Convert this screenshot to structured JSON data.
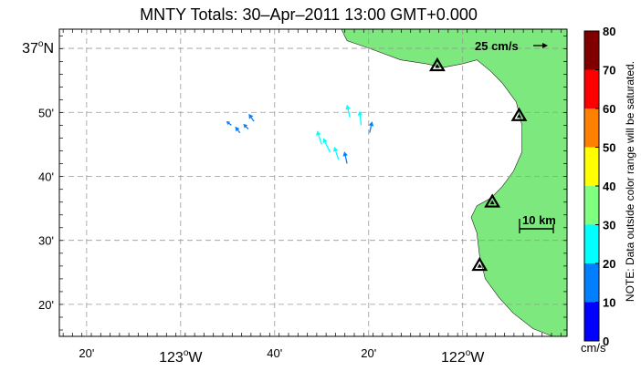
{
  "title": "MNTY Totals: 30–Apr–2011 13:00 GMT+0.000",
  "lat_labels": [
    {
      "text": "37",
      "deg": true,
      "hemi": "N",
      "lat": 37.0
    },
    {
      "text": "50'",
      "lat": 36.8333
    },
    {
      "text": "40'",
      "lat": 36.6667
    },
    {
      "text": "30'",
      "lat": 36.5
    },
    {
      "text": "20'",
      "lat": 36.3333
    }
  ],
  "lon_labels": [
    {
      "text": "20'",
      "lon": -123.3333
    },
    {
      "text": "123",
      "deg": true,
      "hemi": "W",
      "lon": -123.0
    },
    {
      "text": "40'",
      "lon": -122.6667
    },
    {
      "text": "20'",
      "lon": -122.3333
    },
    {
      "text": "122",
      "deg": true,
      "hemi": "W",
      "lon": -122.0
    }
  ],
  "scale_arrow": {
    "label": "25 cm/s",
    "speed": 25
  },
  "scale_bar": {
    "label": "10 km"
  },
  "colorbar": {
    "ticks": [
      "0",
      "10",
      "20",
      "30",
      "40",
      "50",
      "60",
      "70",
      "80"
    ],
    "colors": [
      "#0000ff",
      "#0080ff",
      "#00ffff",
      "#80ff80",
      "#ffff00",
      "#ff8000",
      "#ff0000",
      "#800000"
    ],
    "unit": "cm/s",
    "note": "NOTE: Data outside color range will be saturated."
  },
  "land_color": "#7de87d",
  "stations": [
    {
      "lon": -122.09,
      "lat": 36.955
    },
    {
      "lon": -121.8,
      "lat": 36.825
    },
    {
      "lon": -121.895,
      "lat": 36.6
    },
    {
      "lon": -121.94,
      "lat": 36.435
    }
  ],
  "map_data": {
    "region": {
      "lon_min": -123.43,
      "lon_max": -121.63,
      "lat_min": 36.25,
      "lat_max": 37.05
    },
    "coast": [
      [
        -122.43,
        37.05
      ],
      [
        -122.41,
        37.02
      ],
      [
        -122.33,
        37.0
      ],
      [
        -122.22,
        36.97
      ],
      [
        -122.13,
        36.96
      ],
      [
        -122.07,
        36.95
      ],
      [
        -122.0,
        36.96
      ],
      [
        -121.95,
        36.97
      ],
      [
        -121.9,
        36.94
      ],
      [
        -121.86,
        36.91
      ],
      [
        -121.81,
        36.86
      ],
      [
        -121.79,
        36.8
      ],
      [
        -121.79,
        36.73
      ],
      [
        -121.82,
        36.68
      ],
      [
        -121.86,
        36.64
      ],
      [
        -121.9,
        36.61
      ],
      [
        -121.95,
        36.59
      ],
      [
        -121.97,
        36.56
      ],
      [
        -121.95,
        36.52
      ],
      [
        -121.94,
        36.46
      ],
      [
        -121.92,
        36.4
      ],
      [
        -121.87,
        36.35
      ],
      [
        -121.82,
        36.31
      ],
      [
        -121.75,
        36.27
      ],
      [
        -121.68,
        36.25
      ]
    ],
    "vector_grid": {
      "lon_start": -122.88,
      "lat_start": 36.27,
      "dlon": 0.0275,
      "dlat": 0.0224
    },
    "vectors": [
      [
        -122.82,
        36.8,
        -0.8,
        0.6,
        10
      ],
      [
        -122.79,
        36.78,
        -0.6,
        0.8,
        12
      ],
      [
        -122.76,
        36.79,
        -0.7,
        0.7,
        11
      ],
      [
        -122.74,
        36.81,
        -0.5,
        0.7,
        14
      ],
      [
        -122.4,
        36.82,
        -0.2,
        0.9,
        20
      ],
      [
        -122.36,
        36.8,
        -0.1,
        0.9,
        22
      ],
      [
        -122.33,
        36.78,
        0.2,
        0.9,
        18
      ],
      [
        -122.5,
        36.75,
        -0.3,
        0.9,
        22
      ],
      [
        -122.47,
        36.73,
        -0.4,
        0.8,
        24
      ],
      [
        -122.44,
        36.71,
        -0.3,
        0.9,
        21
      ],
      [
        -122.41,
        36.7,
        -0.2,
        0.9,
        19
      ]
    ]
  }
}
